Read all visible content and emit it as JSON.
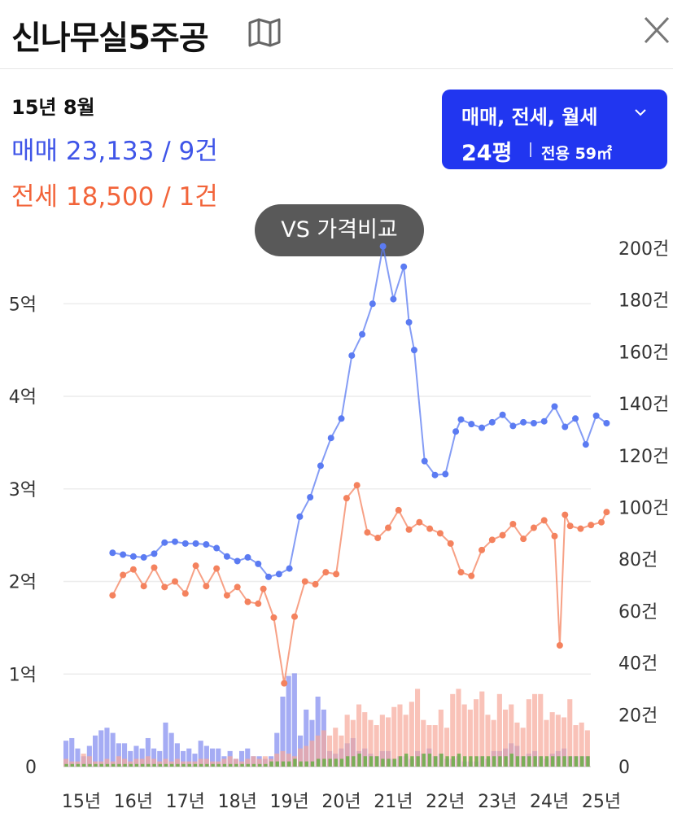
{
  "header": {
    "title": "신나무실5주공",
    "map_icon": "map-icon",
    "close_icon": "close-icon"
  },
  "summary": {
    "period": "15년 8월",
    "sale": {
      "label": "매매",
      "text": "23,133 / 9건",
      "color": "#3f55e8"
    },
    "jeonse": {
      "label": "전세",
      "text": "18,500 / 1건",
      "color": "#f2643a"
    }
  },
  "filter": {
    "types": "매매, 전세, 월세",
    "size": "24평",
    "area": "전용 59㎡",
    "background": "#2136f0"
  },
  "vs_button": "VS 가격비교",
  "chart_data": {
    "type": "line",
    "x_ticks": [
      "15년",
      "16년",
      "17년",
      "18년",
      "19년",
      "20년",
      "21년",
      "22년",
      "23년",
      "24년",
      "25년"
    ],
    "y_left": {
      "ticks": [
        "0",
        "1억",
        "2억",
        "3억",
        "4억",
        "5억"
      ],
      "range": [
        0,
        5.6
      ],
      "unit": "억"
    },
    "y_right": {
      "ticks": [
        "0",
        "20건",
        "40건",
        "60건",
        "80건",
        "100건",
        "120건",
        "140건",
        "160건",
        "180건",
        "200건"
      ],
      "range": [
        0,
        200
      ]
    },
    "grid": true,
    "series": [
      {
        "name": "매매",
        "color": "#5b7bf2",
        "x": [
          2015.6,
          2015.8,
          2016.0,
          2016.2,
          2016.4,
          2016.6,
          2016.8,
          2017.0,
          2017.2,
          2017.4,
          2017.6,
          2017.8,
          2018.0,
          2018.2,
          2018.4,
          2018.6,
          2018.8,
          2019.0,
          2019.2,
          2019.4,
          2019.6,
          2019.8,
          2020.0,
          2020.2,
          2020.4,
          2020.6,
          2020.8,
          2021.0,
          2021.2,
          2021.3,
          2021.4,
          2021.6,
          2021.8,
          2022.0,
          2022.2,
          2022.3,
          2022.5,
          2022.7,
          2022.9,
          2023.1,
          2023.3,
          2023.5,
          2023.7,
          2023.9,
          2024.1,
          2024.3,
          2024.5,
          2024.7,
          2024.9,
          2025.1
        ],
        "values": [
          2.31,
          2.29,
          2.27,
          2.26,
          2.3,
          2.42,
          2.43,
          2.41,
          2.41,
          2.4,
          2.36,
          2.27,
          2.22,
          2.26,
          2.19,
          2.05,
          2.08,
          2.14,
          2.7,
          2.91,
          3.25,
          3.55,
          3.76,
          4.44,
          4.67,
          5.0,
          5.62,
          5.05,
          5.4,
          4.8,
          4.5,
          3.3,
          3.15,
          3.16,
          3.62,
          3.75,
          3.7,
          3.66,
          3.72,
          3.8,
          3.68,
          3.72,
          3.71,
          3.73,
          3.89,
          3.67,
          3.76,
          3.48,
          3.79,
          3.71
        ]
      },
      {
        "name": "전세",
        "color": "#f4825e",
        "x": [
          2015.6,
          2015.8,
          2016.0,
          2016.2,
          2016.4,
          2016.6,
          2016.8,
          2017.0,
          2017.2,
          2017.4,
          2017.6,
          2017.8,
          2018.0,
          2018.2,
          2018.4,
          2018.5,
          2018.7,
          2018.9,
          2019.1,
          2019.3,
          2019.5,
          2019.7,
          2019.9,
          2020.1,
          2020.3,
          2020.5,
          2020.7,
          2020.9,
          2021.1,
          2021.3,
          2021.5,
          2021.7,
          2021.9,
          2022.1,
          2022.3,
          2022.5,
          2022.7,
          2022.9,
          2023.1,
          2023.3,
          2023.5,
          2023.7,
          2023.9,
          2024.1,
          2024.2,
          2024.3,
          2024.4,
          2024.6,
          2024.8,
          2025.0,
          2025.1
        ],
        "values": [
          1.85,
          2.07,
          2.13,
          1.95,
          2.15,
          1.94,
          2.0,
          1.87,
          2.17,
          1.95,
          2.14,
          1.85,
          1.94,
          1.78,
          1.76,
          1.92,
          1.61,
          0.9,
          1.62,
          2.0,
          1.97,
          2.1,
          2.08,
          2.9,
          3.04,
          2.53,
          2.47,
          2.58,
          2.77,
          2.56,
          2.64,
          2.57,
          2.52,
          2.41,
          2.1,
          2.06,
          2.34,
          2.45,
          2.5,
          2.62,
          2.46,
          2.58,
          2.66,
          2.49,
          1.31,
          2.72,
          2.6,
          2.57,
          2.61,
          2.64,
          2.75
        ]
      }
    ],
    "volume": {
      "axis": "y_right",
      "series": [
        {
          "name": "매매 거래량",
          "color": "#7f89f0",
          "values": [
            10,
            11,
            7,
            4,
            8,
            12,
            14,
            15,
            13,
            9,
            9,
            6,
            8,
            7,
            11,
            7,
            6,
            17,
            13,
            9,
            6,
            7,
            5,
            10,
            8,
            7,
            7,
            4,
            6,
            3,
            6,
            7,
            4,
            4,
            3,
            4,
            13,
            27,
            35,
            36,
            12,
            22,
            18,
            27,
            22,
            6,
            5,
            7,
            9,
            11,
            6,
            7,
            5,
            4,
            6,
            6,
            3,
            4,
            4,
            3,
            6,
            5,
            7,
            4,
            5,
            3,
            3,
            4,
            2,
            2,
            2,
            4,
            3,
            6,
            6,
            7,
            9,
            8,
            4,
            5,
            6,
            4,
            3,
            5,
            6,
            7,
            4,
            4,
            4,
            4
          ]
        },
        {
          "name": "전세 거래량",
          "color": "#f7a89a",
          "values": [
            3,
            2,
            2,
            5,
            4,
            2,
            2,
            3,
            2,
            4,
            3,
            2,
            3,
            3,
            4,
            3,
            2,
            3,
            2,
            3,
            2,
            2,
            2,
            3,
            3,
            2,
            2,
            3,
            4,
            3,
            2,
            3,
            4,
            3,
            4,
            3,
            5,
            6,
            5,
            4,
            7,
            8,
            10,
            12,
            14,
            12,
            15,
            12,
            20,
            18,
            24,
            21,
            18,
            16,
            20,
            19,
            23,
            24,
            20,
            25,
            30,
            18,
            16,
            16,
            22,
            15,
            28,
            30,
            24,
            22,
            26,
            29,
            20,
            18,
            28,
            22,
            24,
            17,
            15,
            26,
            28,
            28,
            18,
            21,
            20,
            19,
            26,
            16,
            17,
            14
          ]
        },
        {
          "name": "월세 거래량",
          "color": "#6fae4d",
          "values": [
            1,
            1,
            1,
            1,
            1,
            1,
            1,
            1,
            1,
            1,
            1,
            1,
            1,
            1,
            1,
            1,
            1,
            1,
            1,
            1,
            1,
            1,
            1,
            1,
            1,
            1,
            1,
            1,
            1,
            1,
            1,
            1,
            1,
            1,
            1,
            2,
            2,
            2,
            2,
            3,
            2,
            2,
            2,
            3,
            3,
            3,
            3,
            3,
            4,
            4,
            5,
            4,
            4,
            4,
            3,
            3,
            3,
            4,
            5,
            4,
            4,
            5,
            5,
            4,
            5,
            4,
            4,
            5,
            4,
            4,
            4,
            4,
            4,
            4,
            4,
            4,
            5,
            4,
            4,
            4,
            4,
            4,
            4,
            4,
            4,
            4,
            4,
            4,
            4,
            4
          ]
        }
      ]
    }
  }
}
